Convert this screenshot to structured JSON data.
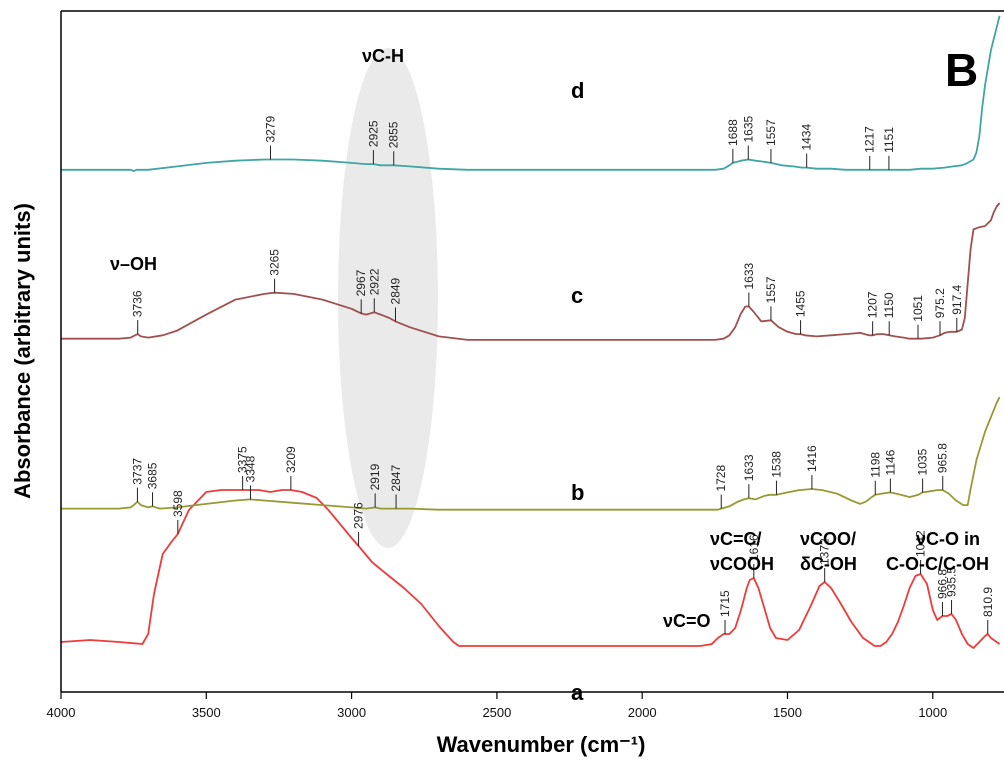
{
  "chart_data": {
    "type": "line",
    "panel_label": "B",
    "xlabel": "Wavenumber (cm⁻¹)",
    "ylabel": "Absorbance (arbitrary units)",
    "xlim": [
      4000,
      770
    ],
    "x_reversed": true,
    "x_ticks": [
      4000,
      3500,
      3000,
      2500,
      2000,
      1500,
      1000
    ],
    "grid": false,
    "colors": {
      "a": "#ee3b3b",
      "b": "#999933",
      "c": "#a05050",
      "d": "#3fa5a5"
    },
    "series": [
      {
        "name": "a",
        "peaks": [
          "3598",
          "3375",
          "3209",
          "2976",
          "1715",
          "1616",
          "1372",
          "1042",
          "966.8",
          "935.5",
          "810.9"
        ],
        "x": [
          4000,
          3900,
          3800,
          3720,
          3700,
          3680,
          3650,
          3620,
          3598,
          3560,
          3500,
          3450,
          3400,
          3375,
          3320,
          3280,
          3240,
          3209,
          3170,
          3120,
          3080,
          3040,
          3000,
          2976,
          2930,
          2880,
          2820,
          2760,
          2700,
          2650,
          2630,
          2500,
          2200,
          2000,
          1800,
          1760,
          1740,
          1720,
          1715,
          1700,
          1680,
          1660,
          1640,
          1630,
          1616,
          1600,
          1580,
          1560,
          1540,
          1500,
          1460,
          1420,
          1390,
          1372,
          1350,
          1320,
          1280,
          1240,
          1200,
          1180,
          1160,
          1140,
          1120,
          1100,
          1080,
          1060,
          1042,
          1020,
          1000,
          985,
          966.8,
          950,
          935.5,
          920,
          900,
          880,
          860,
          840,
          820,
          810.9,
          800,
          780,
          770
        ],
        "y": [
          0.06,
          0.07,
          0.06,
          0.05,
          0.1,
          0.3,
          0.5,
          0.56,
          0.6,
          0.72,
          0.81,
          0.82,
          0.82,
          0.82,
          0.82,
          0.81,
          0.82,
          0.82,
          0.81,
          0.78,
          0.72,
          0.65,
          0.58,
          0.54,
          0.46,
          0.4,
          0.33,
          0.25,
          0.14,
          0.06,
          0.04,
          0.04,
          0.04,
          0.04,
          0.04,
          0.05,
          0.08,
          0.1,
          0.1,
          0.1,
          0.13,
          0.22,
          0.33,
          0.37,
          0.38,
          0.33,
          0.23,
          0.13,
          0.08,
          0.07,
          0.12,
          0.24,
          0.34,
          0.36,
          0.33,
          0.26,
          0.16,
          0.08,
          0.04,
          0.04,
          0.06,
          0.1,
          0.16,
          0.24,
          0.33,
          0.39,
          0.4,
          0.35,
          0.22,
          0.17,
          0.19,
          0.19,
          0.2,
          0.17,
          0.1,
          0.05,
          0.03,
          0.06,
          0.09,
          0.1,
          0.08,
          0.06,
          0.05
        ]
      },
      {
        "name": "b",
        "peaks": [
          "3737",
          "3685",
          "3348",
          "2919",
          "2847",
          "1728",
          "1633",
          "1538",
          "1416",
          "1198",
          "1146",
          "1035",
          "965.8"
        ],
        "x": [
          4000,
          3900,
          3800,
          3760,
          3745,
          3737,
          3725,
          3700,
          3685,
          3660,
          3600,
          3500,
          3400,
          3348,
          3300,
          3200,
          3100,
          3000,
          2950,
          2919,
          2900,
          2870,
          2847,
          2800,
          2700,
          2500,
          2000,
          1800,
          1740,
          1728,
          1700,
          1670,
          1650,
          1633,
          1610,
          1580,
          1560,
          1538,
          1500,
          1460,
          1416,
          1380,
          1330,
          1280,
          1250,
          1230,
          1210,
          1198,
          1175,
          1146,
          1110,
          1080,
          1050,
          1035,
          1010,
          985,
          965.8,
          945,
          920,
          895,
          880,
          870,
          850,
          820,
          780,
          770
        ],
        "y": [
          0.03,
          0.03,
          0.03,
          0.04,
          0.07,
          0.09,
          0.06,
          0.04,
          0.05,
          0.03,
          0.04,
          0.07,
          0.1,
          0.11,
          0.1,
          0.08,
          0.06,
          0.04,
          0.03,
          0.04,
          0.03,
          0.03,
          0.03,
          0.03,
          0.02,
          0.02,
          0.02,
          0.02,
          0.02,
          0.03,
          0.05,
          0.09,
          0.11,
          0.12,
          0.11,
          0.14,
          0.15,
          0.15,
          0.17,
          0.19,
          0.2,
          0.19,
          0.16,
          0.1,
          0.07,
          0.09,
          0.13,
          0.15,
          0.16,
          0.17,
          0.15,
          0.13,
          0.15,
          0.17,
          0.18,
          0.19,
          0.19,
          0.16,
          0.1,
          0.06,
          0.06,
          0.2,
          0.45,
          0.7,
          0.95,
          1.0
        ]
      },
      {
        "name": "c",
        "peaks": [
          "3736",
          "3265",
          "2967",
          "2922",
          "2849",
          "1633",
          "1557",
          "1455",
          "1207",
          "1150",
          "1051",
          "975.2",
          "917.4"
        ],
        "x": [
          4000,
          3900,
          3800,
          3760,
          3745,
          3736,
          3725,
          3700,
          3650,
          3600,
          3500,
          3400,
          3300,
          3265,
          3200,
          3100,
          3000,
          2967,
          2950,
          2922,
          2900,
          2870,
          2849,
          2800,
          2700,
          2600,
          2500,
          2000,
          1800,
          1750,
          1720,
          1700,
          1680,
          1660,
          1645,
          1633,
          1615,
          1590,
          1557,
          1530,
          1500,
          1470,
          1455,
          1440,
          1400,
          1350,
          1300,
          1250,
          1220,
          1207,
          1190,
          1170,
          1150,
          1130,
          1100,
          1080,
          1060,
          1051,
          1040,
          1000,
          975.2,
          960,
          940,
          917.4,
          900,
          890,
          880,
          870,
          860,
          840,
          820,
          800,
          790,
          780,
          770
        ],
        "y": [
          0.02,
          0.02,
          0.02,
          0.03,
          0.05,
          0.06,
          0.04,
          0.03,
          0.05,
          0.09,
          0.23,
          0.36,
          0.41,
          0.42,
          0.41,
          0.36,
          0.28,
          0.24,
          0.23,
          0.25,
          0.23,
          0.2,
          0.17,
          0.12,
          0.04,
          0.01,
          0.01,
          0.01,
          0.01,
          0.01,
          0.02,
          0.05,
          0.12,
          0.24,
          0.3,
          0.3,
          0.25,
          0.17,
          0.18,
          0.12,
          0.08,
          0.06,
          0.06,
          0.05,
          0.04,
          0.05,
          0.06,
          0.07,
          0.05,
          0.05,
          0.06,
          0.06,
          0.05,
          0.04,
          0.03,
          0.02,
          0.02,
          0.02,
          0.02,
          0.03,
          0.05,
          0.07,
          0.08,
          0.08,
          0.1,
          0.2,
          0.5,
          0.8,
          0.97,
          0.99,
          1.0,
          1.05,
          1.12,
          1.17,
          1.2
        ]
      },
      {
        "name": "d",
        "peaks": [
          "3279",
          "2925",
          "2855",
          "1688",
          "1635",
          "1557",
          "1434",
          "1217",
          "1151"
        ],
        "x": [
          4000,
          3900,
          3800,
          3760,
          3750,
          3740,
          3700,
          3600,
          3500,
          3400,
          3300,
          3279,
          3200,
          3100,
          3000,
          2950,
          2925,
          2900,
          2855,
          2800,
          2700,
          2600,
          2500,
          2000,
          1800,
          1750,
          1720,
          1700,
          1688,
          1660,
          1635,
          1610,
          1580,
          1557,
          1520,
          1480,
          1450,
          1434,
          1400,
          1350,
          1300,
          1250,
          1217,
          1180,
          1151,
          1120,
          1080,
          1040,
          1000,
          960,
          930,
          900,
          880,
          860,
          850,
          840,
          830,
          820,
          800,
          780,
          770
        ],
        "y": [
          0.01,
          0.01,
          0.01,
          0.01,
          0.0,
          0.01,
          0.01,
          0.04,
          0.07,
          0.09,
          0.1,
          0.1,
          0.1,
          0.09,
          0.07,
          0.06,
          0.06,
          0.05,
          0.05,
          0.04,
          0.02,
          0.01,
          0.01,
          0.01,
          0.01,
          0.01,
          0.02,
          0.05,
          0.07,
          0.09,
          0.1,
          0.09,
          0.08,
          0.07,
          0.05,
          0.04,
          0.03,
          0.03,
          0.02,
          0.02,
          0.01,
          0.01,
          0.01,
          0.01,
          0.01,
          0.01,
          0.01,
          0.02,
          0.02,
          0.03,
          0.04,
          0.05,
          0.07,
          0.1,
          0.16,
          0.3,
          0.55,
          0.75,
          1.05,
          1.25,
          1.35
        ]
      }
    ],
    "annotations": [
      {
        "id": "vch",
        "text": "νC-H"
      },
      {
        "id": "voh",
        "text": "ν–OH"
      },
      {
        "id": "vco",
        "text": "νC=O"
      },
      {
        "id": "vcc1",
        "text": "νC=C/"
      },
      {
        "id": "vcc2",
        "text": "νCOOH"
      },
      {
        "id": "vcoo1",
        "text": "νCOO/"
      },
      {
        "id": "vcoo2",
        "text": "δC-OH"
      },
      {
        "id": "vcoin1",
        "text": "νC-O in"
      },
      {
        "id": "vcoin2",
        "text": "C-O-C/C-OH"
      }
    ]
  }
}
